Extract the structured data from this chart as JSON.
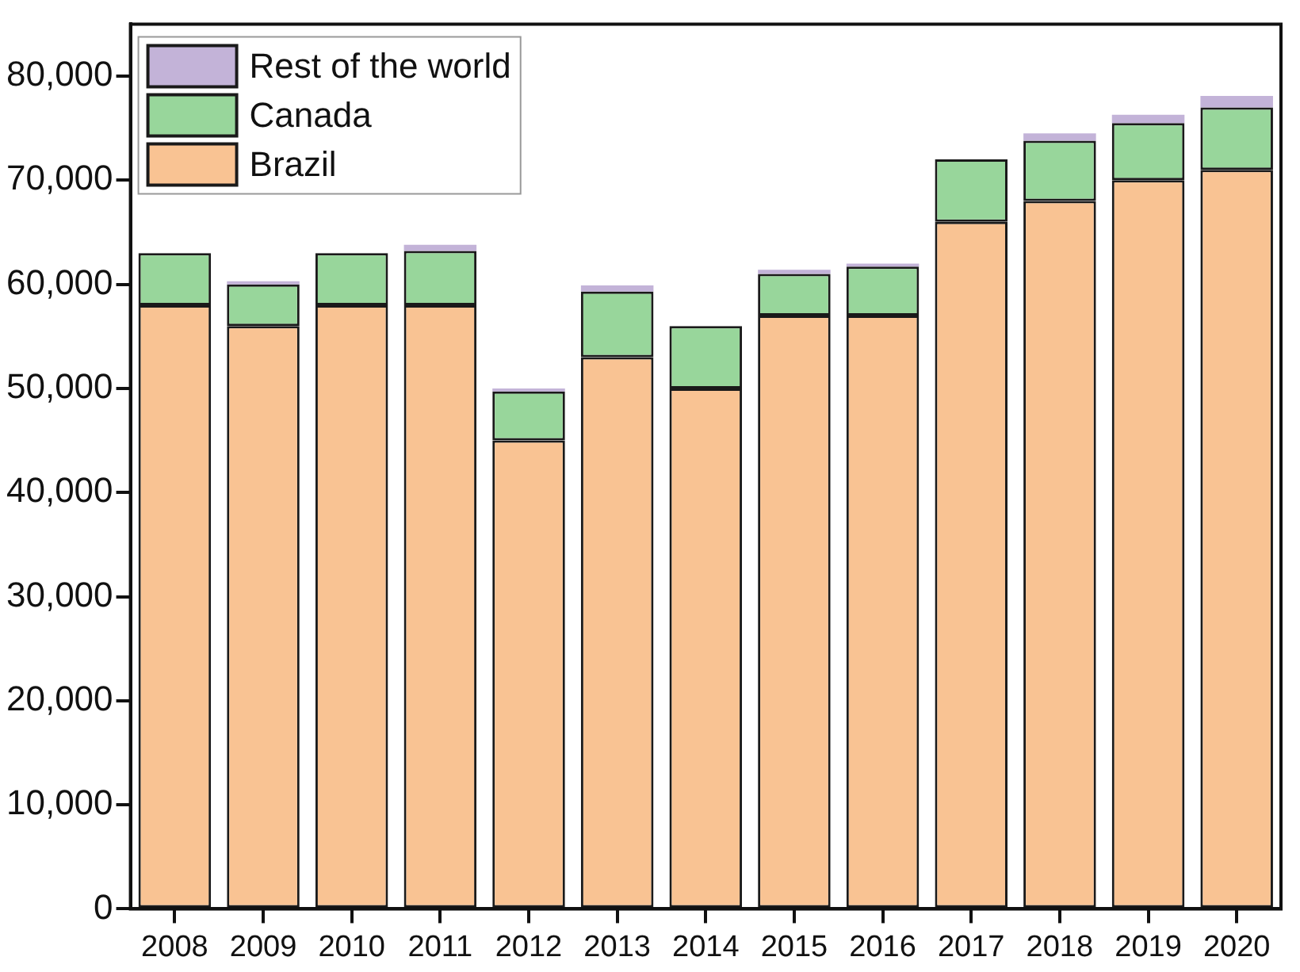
{
  "chart_data": {
    "type": "bar",
    "stacked": true,
    "categories": [
      "2008",
      "2009",
      "2010",
      "2011",
      "2012",
      "2013",
      "2014",
      "2015",
      "2016",
      "2017",
      "2018",
      "2019",
      "2020"
    ],
    "series": [
      {
        "name": "Brazil",
        "color": "#f9c393",
        "values": [
          58000,
          56000,
          58000,
          58000,
          45000,
          53000,
          50000,
          57000,
          57000,
          66000,
          68000,
          70000,
          71000
        ]
      },
      {
        "name": "Canada",
        "color": "#98d69b",
        "values": [
          5000,
          4000,
          5000,
          5200,
          4700,
          6300,
          6000,
          4000,
          4700,
          6000,
          5800,
          5500,
          6000
        ]
      },
      {
        "name": "Rest of the world",
        "color": "#c3b3d8",
        "values": [
          0,
          300,
          0,
          600,
          300,
          600,
          0,
          400,
          300,
          null,
          700,
          800,
          1100
        ]
      }
    ],
    "ylim": [
      0,
      85000
    ],
    "yticks": [
      0,
      {
        "value": 10000,
        "label": "10,000"
      },
      {
        "value": 20000,
        "label": "20,000"
      },
      {
        "value": 30000,
        "label": "30,000"
      },
      {
        "value": 40000,
        "label": "40,000"
      },
      {
        "value": 50000,
        "label": "50,000"
      },
      {
        "value": 60000,
        "label": "60,000"
      },
      {
        "value": 70000,
        "label": "70,000"
      },
      {
        "value": 80000,
        "label": "80,000"
      }
    ],
    "grid": false,
    "legend": "top left"
  }
}
